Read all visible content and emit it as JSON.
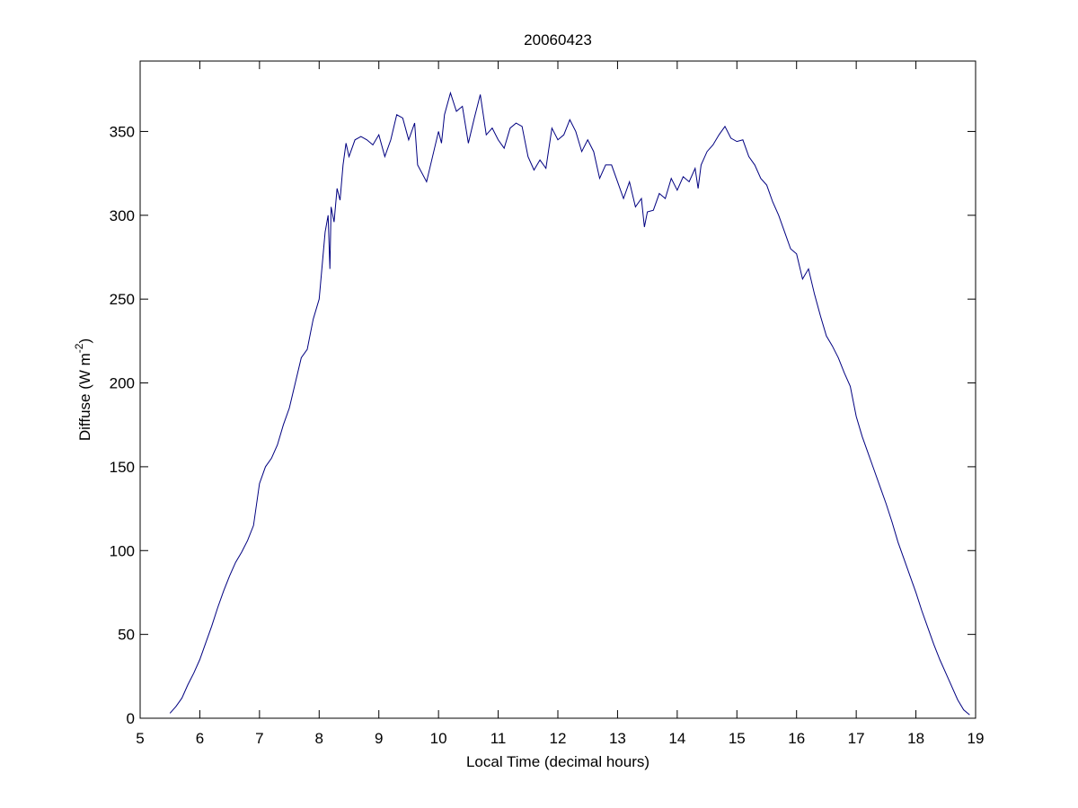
{
  "chart_data": {
    "type": "line",
    "title": "20060423",
    "xlabel": "Local Time (decimal hours)",
    "ylabel": [
      "Diffuse (W m",
      "-2",
      ")"
    ],
    "x": [
      5.5,
      5.6,
      5.7,
      5.8,
      5.9,
      6.0,
      6.1,
      6.2,
      6.3,
      6.4,
      6.5,
      6.6,
      6.7,
      6.8,
      6.9,
      7.0,
      7.1,
      7.2,
      7.3,
      7.4,
      7.5,
      7.6,
      7.7,
      7.8,
      7.9,
      8.0,
      8.05,
      8.1,
      8.15,
      8.18,
      8.2,
      8.25,
      8.3,
      8.35,
      8.4,
      8.45,
      8.5,
      8.6,
      8.7,
      8.8,
      8.9,
      9.0,
      9.1,
      9.2,
      9.3,
      9.4,
      9.5,
      9.6,
      9.65,
      9.8,
      9.9,
      10.0,
      10.05,
      10.1,
      10.2,
      10.3,
      10.4,
      10.5,
      10.6,
      10.7,
      10.8,
      10.9,
      11.0,
      11.1,
      11.2,
      11.3,
      11.4,
      11.5,
      11.6,
      11.7,
      11.8,
      11.9,
      12.0,
      12.1,
      12.2,
      12.3,
      12.4,
      12.5,
      12.6,
      12.7,
      12.8,
      12.9,
      13.0,
      13.1,
      13.2,
      13.3,
      13.4,
      13.45,
      13.5,
      13.6,
      13.7,
      13.8,
      13.9,
      14.0,
      14.1,
      14.2,
      14.3,
      14.35,
      14.4,
      14.5,
      14.6,
      14.7,
      14.8,
      14.9,
      15.0,
      15.1,
      15.2,
      15.3,
      15.4,
      15.5,
      15.6,
      15.7,
      15.8,
      15.9,
      16.0,
      16.1,
      16.2,
      16.3,
      16.4,
      16.5,
      16.6,
      16.7,
      16.8,
      16.9,
      17.0,
      17.1,
      17.2,
      17.3,
      17.4,
      17.5,
      17.6,
      17.7,
      17.8,
      17.9,
      18.0,
      18.1,
      18.2,
      18.3,
      18.4,
      18.5,
      18.6,
      18.7,
      18.8,
      18.9
    ],
    "series": [
      {
        "color": "#000080",
        "values": [
          3,
          7,
          12,
          20,
          27,
          35,
          45,
          55,
          66,
          76,
          85,
          93,
          99,
          106,
          115,
          140,
          150,
          155,
          163,
          175,
          185,
          200,
          215,
          220,
          238,
          250,
          270,
          290,
          300,
          268,
          305,
          296,
          316,
          309,
          330,
          343,
          335,
          345,
          347,
          345,
          342,
          348,
          335,
          345,
          360,
          358,
          345,
          355,
          330,
          320,
          335,
          350,
          343,
          360,
          373,
          362,
          365,
          343,
          358,
          372,
          348,
          352,
          345,
          340,
          352,
          355,
          353,
          335,
          327,
          333,
          328,
          352,
          345,
          348,
          357,
          350,
          338,
          345,
          338,
          322,
          330,
          330,
          320,
          310,
          320,
          305,
          310,
          293,
          302,
          303,
          313,
          310,
          322,
          315,
          323,
          320,
          328,
          316,
          330,
          338,
          342,
          348,
          353,
          346,
          344,
          345,
          335,
          330,
          322,
          318,
          308,
          300,
          290,
          280,
          277,
          262,
          268,
          253,
          240,
          228,
          222,
          215,
          206,
          198,
          180,
          168,
          158,
          148,
          138,
          128,
          117,
          105,
          95,
          85,
          75,
          64,
          54,
          44,
          35,
          27,
          19,
          11,
          5,
          2
        ]
      }
    ],
    "xlim": [
      5,
      19
    ],
    "ylim": [
      0,
      392
    ],
    "xticks": [
      5,
      6,
      7,
      8,
      9,
      10,
      11,
      12,
      13,
      14,
      15,
      16,
      17,
      18,
      19
    ],
    "yticks": [
      0,
      50,
      100,
      150,
      200,
      250,
      300,
      350
    ]
  }
}
